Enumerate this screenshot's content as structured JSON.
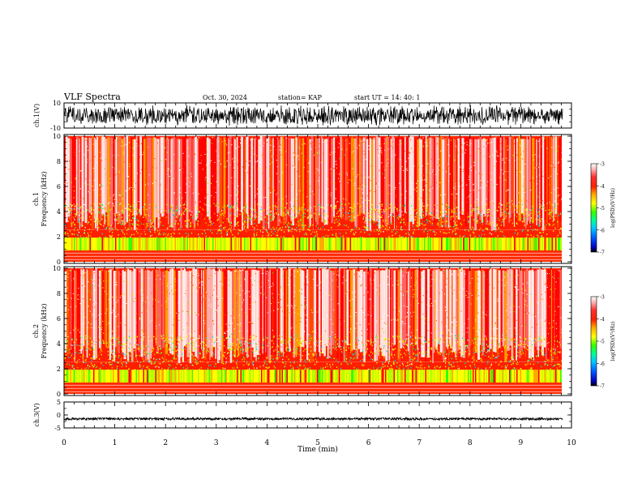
{
  "header": {
    "title": "VLF Spectra",
    "date": "Oct. 30, 2024",
    "station": "station= KAP",
    "start_ut": "start  UT =   14: 40: 1"
  },
  "colors": {
    "spectrogram": [
      "#0000b4",
      "#0050ff",
      "#00c8ff",
      "#00ff96",
      "#32ff00",
      "#b4ff00",
      "#ffff00",
      "#ffaa00",
      "#ff5000",
      "#ff0000",
      "#ff6e6e",
      "#ffbebe",
      "#ffffff"
    ],
    "trace": "#000000"
  },
  "chart_data": [
    {
      "type": "line",
      "panel": "ch1-waveform",
      "ylabel": "ch.1(V)",
      "ylim": [
        -10,
        10
      ],
      "ytick_labels": [
        "10",
        "-10"
      ],
      "xlim": [
        0,
        10
      ],
      "data_end_min": 9.83,
      "description_of_values": "continuous broadband noise spanning nearly full range (approx. -9 to +9 V)"
    },
    {
      "type": "heatmap",
      "panel": "ch1-spectrogram",
      "ylabel_lines": [
        "ch.1",
        "Frequency  (kHz)"
      ],
      "ylim": [
        0,
        10
      ],
      "ytick_labels": [
        "0",
        "2",
        "4",
        "6",
        "8",
        "10"
      ],
      "xlim": [
        0,
        10
      ],
      "data_end_min": 9.83,
      "colorbar": {
        "label": "log(PSD)(V²/Hz)",
        "range": [
          -7,
          -3
        ],
        "tick_labels": [
          "-3",
          "-4",
          "-5",
          "-6",
          "-7"
        ]
      }
    },
    {
      "type": "heatmap",
      "panel": "ch2-spectrogram",
      "ylabel_lines": [
        "ch.2",
        "Frequency  (kHz)"
      ],
      "ylim": [
        0,
        10
      ],
      "ytick_labels": [
        "0",
        "2",
        "4",
        "6",
        "8",
        "10"
      ],
      "xlim": [
        0,
        10
      ],
      "data_end_min": 9.83,
      "colorbar": {
        "label": "log(PSD)(V²/Hz)",
        "range": [
          -7,
          -3
        ],
        "tick_labels": [
          "-3",
          "-4",
          "-5",
          "-6",
          "-7"
        ]
      }
    },
    {
      "type": "line",
      "panel": "ch3-waveform",
      "ylabel": "ch.3(V)",
      "ylim": [
        -5,
        5
      ],
      "ytick_labels": [
        "5",
        "0",
        "-5"
      ],
      "xlim": [
        0,
        10
      ],
      "data_end_min": 9.83,
      "level_approx_V": -1.5,
      "description_of_values": "dense narrow-band noise around approx. -1.5 V"
    }
  ],
  "x_axis": {
    "label": "Time  (min)",
    "tick_labels": [
      "0",
      "1",
      "2",
      "3",
      "4",
      "5",
      "6",
      "7",
      "8",
      "9",
      "10"
    ]
  }
}
